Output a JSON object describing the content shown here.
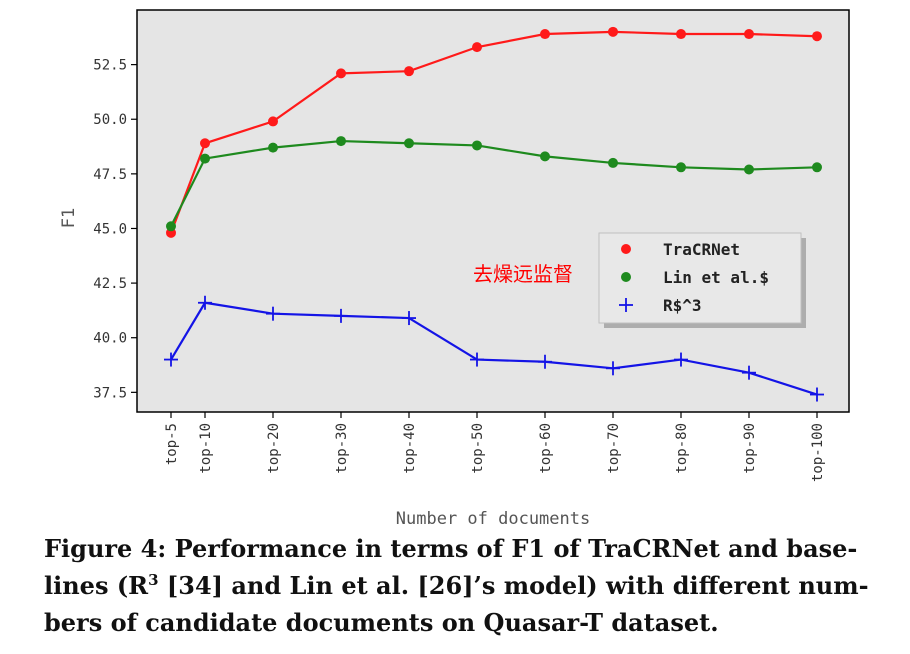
{
  "chart_data": {
    "type": "line",
    "categories": [
      "top-5",
      "top-10",
      "top-20",
      "top-30",
      "top-40",
      "top-50",
      "top-60",
      "top-70",
      "top-80",
      "top-90",
      "top-100"
    ],
    "series": [
      {
        "name": "TraCRNet",
        "color": "#ff1a1a",
        "marker": "circle",
        "values": [
          44.8,
          48.9,
          49.9,
          52.1,
          52.2,
          53.3,
          53.9,
          54.0,
          53.9,
          53.9,
          53.8
        ]
      },
      {
        "name": "Lin et al.$",
        "color": "#1e8a1e",
        "marker": "circle",
        "values": [
          45.1,
          48.2,
          48.7,
          49.0,
          48.9,
          48.8,
          48.3,
          48.0,
          47.8,
          47.7,
          47.8
        ]
      },
      {
        "name": "R$^3",
        "color": "#1414e6",
        "marker": "plus",
        "values": [
          39.0,
          41.6,
          41.1,
          41.0,
          40.9,
          39.0,
          38.9,
          38.6,
          39.0,
          38.4,
          37.4
        ]
      }
    ],
    "xlabel": "Number of documents",
    "ylabel": "F1",
    "yticks": [
      "37.5",
      "40.0",
      "42.5",
      "45.0",
      "47.5",
      "50.0",
      "52.5"
    ],
    "ylim": [
      36.6,
      55.0
    ],
    "grid": false,
    "legend_position": "center-right",
    "background": "#e5e5e5"
  },
  "watermark": "去燥远监督",
  "caption": {
    "prefix": "Figure 4: Performance in terms of F1 of TraCRNet and base-lines (R",
    "sup": "3",
    "suffix": " [34] and Lin et al. [26]’s model) with different num-bers of candidate documents on Quasar-T dataset."
  }
}
